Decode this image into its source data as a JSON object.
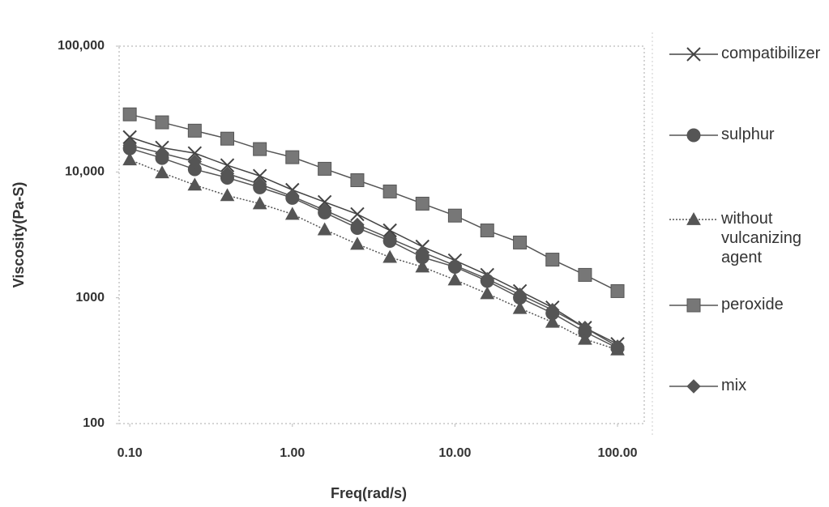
{
  "chart_data": {
    "type": "line",
    "x_label": "Freq(rad/s)",
    "y_label": "Viscosity(Pa-S)",
    "x": [
      0.1,
      0.158,
      0.251,
      0.398,
      0.631,
      1,
      1.58,
      2.51,
      3.98,
      6.31,
      10,
      15.8,
      25.1,
      39.8,
      63.1,
      100
    ],
    "series": [
      {
        "name": "compatibilizer",
        "color": "#444444",
        "marker": "x",
        "linestyle": "solid",
        "values": [
          18900,
          15600,
          14100,
          11300,
          9300,
          7200,
          5770,
          4620,
          3430,
          2550,
          1980,
          1520,
          1130,
          837,
          577,
          429
        ]
      },
      {
        "name": "sulphur",
        "color": "#555555",
        "marker": "circle",
        "linestyle": "solid",
        "values": [
          15400,
          12900,
          10500,
          9000,
          7540,
          6220,
          4760,
          3590,
          2830,
          2100,
          1760,
          1360,
          1000,
          754,
          536,
          398
        ]
      },
      {
        "name": "without vulcanizing agent",
        "color": "#555555",
        "marker": "triangle",
        "linestyle": "dotted",
        "values": [
          12500,
          9860,
          7880,
          6500,
          5600,
          4620,
          3480,
          2670,
          2100,
          1760,
          1390,
          1080,
          824,
          640,
          469,
          386
        ]
      },
      {
        "name": "peroxide",
        "color": "#555555",
        "marker": "square",
        "linestyle": "solid",
        "values": [
          28700,
          24800,
          21300,
          18400,
          15200,
          13100,
          10600,
          8600,
          7000,
          5600,
          4500,
          3430,
          2750,
          2010,
          1520,
          1130
        ]
      },
      {
        "name": "mix",
        "color": "#555555",
        "marker": "diamond",
        "linestyle": "solid",
        "values": [
          16300,
          14100,
          12100,
          9700,
          8000,
          6400,
          4970,
          3810,
          2960,
          2300,
          1810,
          1410,
          1060,
          800,
          577,
          410
        ]
      }
    ],
    "xlog": true,
    "ylog": true,
    "xlim": [
      0.086,
      146
    ],
    "ylim": [
      100,
      100000
    ],
    "xticks": [
      {
        "value": 0.1,
        "label": "0.10"
      },
      {
        "value": 1,
        "label": "1.00"
      },
      {
        "value": 10,
        "label": "10.00"
      },
      {
        "value": 100,
        "label": "100.00"
      }
    ],
    "yticks": [
      100,
      1000,
      {
        "value": 10000,
        "label": "10,000"
      },
      {
        "value": 100000,
        "label": "100,000"
      }
    ],
    "grid": false,
    "legend": "right"
  }
}
